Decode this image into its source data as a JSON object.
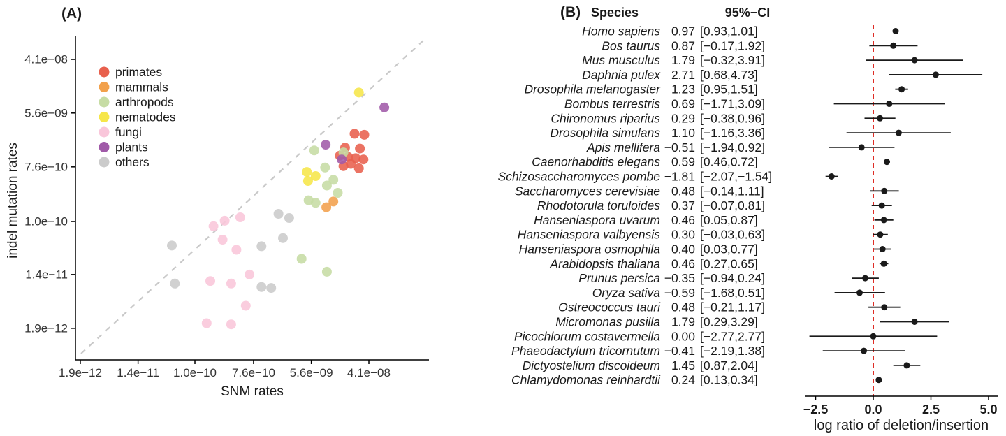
{
  "panelA": {
    "label": "(A)"
  },
  "panelB": {
    "label": "(B)"
  },
  "chart_data": [
    {
      "type": "scatter",
      "panel": "A",
      "xlabel": "SNM rates",
      "ylabel": "indel mutation rates",
      "x_scale": "log",
      "y_scale": "log",
      "identity_line": true,
      "legend_position": "top-left-inside",
      "x_ticks": [
        {
          "value": 1.9e-12,
          "label": "1.9e−12"
        },
        {
          "value": 1.4e-11,
          "label": "1.4e−11"
        },
        {
          "value": 1e-10,
          "label": "1.0e−10"
        },
        {
          "value": 7.6e-10,
          "label": "7.6e−10"
        },
        {
          "value": 5.6e-09,
          "label": "5.6e−09"
        },
        {
          "value": 4.1e-08,
          "label": "4.1e−08"
        }
      ],
      "y_ticks": [
        {
          "value": 4.1e-08,
          "label": "4.1e−08"
        },
        {
          "value": 5.6e-09,
          "label": "5.6e−09"
        },
        {
          "value": 7.6e-10,
          "label": "7.6e−10"
        },
        {
          "value": 1e-10,
          "label": "1.0e−10"
        },
        {
          "value": 1.4e-11,
          "label": "1.4e−11"
        },
        {
          "value": 1.9e-12,
          "label": "1.9e−12"
        }
      ],
      "series": [
        {
          "name": "primates",
          "color": "#E8604D",
          "points": [
            [
              2.5e-08,
              2.6e-09
            ],
            [
              3.5e-08,
              2.5e-09
            ],
            [
              1.8e-08,
              1.55e-09
            ],
            [
              3e-08,
              1.5e-09
            ],
            [
              1.5e-08,
              1.15e-09
            ],
            [
              2e-08,
              1.1e-09
            ],
            [
              2.6e-08,
              1.05e-09
            ],
            [
              3.4e-08,
              1e-09
            ],
            [
              2.2e-08,
              8.5e-10
            ],
            [
              1.7e-08,
              7.8e-10
            ],
            [
              2.9e-08,
              7.2e-10
            ]
          ]
        },
        {
          "name": "mammals",
          "color": "#F2A14C",
          "points": [
            [
              9.4e-09,
              1.7e-10
            ],
            [
              1.2e-08,
              2.1e-10
            ]
          ]
        },
        {
          "name": "arthropods",
          "color": "#C6DCA4",
          "points": [
            [
              6.2e-09,
              1.4e-09
            ],
            [
              1.7e-08,
              1.3e-09
            ],
            [
              9e-09,
              7.4e-10
            ],
            [
              1.2e-08,
              4.7e-10
            ],
            [
              9.6e-09,
              3.8e-10
            ],
            [
              1.4e-08,
              2.9e-10
            ],
            [
              5.1e-09,
              2.2e-10
            ],
            [
              6.5e-09,
              2e-10
            ],
            [
              4e-09,
              2.5e-11
            ],
            [
              9.6e-09,
              1.55e-11
            ]
          ]
        },
        {
          "name": "nematodes",
          "color": "#F6E649",
          "points": [
            [
              2.9e-08,
              1.2e-08
            ],
            [
              4.8e-09,
              6.3e-10
            ],
            [
              6.5e-09,
              5.4e-10
            ],
            [
              5e-09,
              4.5e-10
            ]
          ]
        },
        {
          "name": "fungi",
          "color": "#F9C6DA",
          "points": [
            [
              2.8e-10,
              1.03e-10
            ],
            [
              4.8e-10,
              1.17e-10
            ],
            [
              1.9e-10,
              8.4e-11
            ],
            [
              2.6e-10,
              5.1e-11
            ],
            [
              4.2e-10,
              3.5e-11
            ],
            [
              6.6e-10,
              1.4e-11
            ],
            [
              1.7e-10,
              1.1e-11
            ],
            [
              3.5e-10,
              1e-11
            ],
            [
              5.8e-10,
              4.4e-12
            ],
            [
              1.5e-10,
              2.3e-12
            ],
            [
              3.5e-10,
              2.2e-12
            ]
          ]
        },
        {
          "name": "plants",
          "color": "#A05AA8",
          "points": [
            [
              7e-08,
              6.9e-09
            ],
            [
              9.2e-09,
              1.73e-09
            ],
            [
              1.6e-08,
              1e-09
            ]
          ]
        },
        {
          "name": "others",
          "color": "#CBCBCB",
          "points": [
            [
              4.5e-11,
              4.1e-11
            ],
            [
              1.8e-09,
              1.33e-10
            ],
            [
              2.6e-09,
              1.14e-10
            ],
            [
              1e-09,
              4e-11
            ],
            [
              2.1e-09,
              5.4e-11
            ],
            [
              5e-11,
              1e-11
            ],
            [
              1e-09,
              8.8e-12
            ],
            [
              1.4e-09,
              8.5e-12
            ]
          ]
        }
      ]
    },
    {
      "type": "forest",
      "panel": "B",
      "species_header": "Species",
      "ci_header": "95%−CI",
      "xlabel": "log ratio of deletion/insertion",
      "ref_line": 0,
      "ref_line_color": "#de2d26",
      "xlim": [
        -3.0,
        5.5
      ],
      "x_ticks": [
        {
          "value": -2.5,
          "label": "−2.5"
        },
        {
          "value": 0.0,
          "label": "0.0"
        },
        {
          "value": 2.5,
          "label": "2.5"
        },
        {
          "value": 5.0,
          "label": "5.0"
        }
      ],
      "rows": [
        {
          "species": "Homo sapiens",
          "estimate": "0.97",
          "ci": "[0.93,1.01]",
          "est": 0.97,
          "lo": 0.93,
          "hi": 1.01
        },
        {
          "species": "Bos taurus",
          "estimate": "0.87",
          "ci": "[−0.17,1.92]",
          "est": 0.87,
          "lo": -0.17,
          "hi": 1.92
        },
        {
          "species": "Mus musculus",
          "estimate": "1.79",
          "ci": "[−0.32,3.91]",
          "est": 1.79,
          "lo": -0.32,
          "hi": 3.91
        },
        {
          "species": "Daphnia pulex",
          "estimate": "2.71",
          "ci": "[0.68,4.73]",
          "est": 2.71,
          "lo": 0.68,
          "hi": 4.73
        },
        {
          "species": "Drosophila melanogaster",
          "estimate": "1.23",
          "ci": "[0.95,1.51]",
          "est": 1.23,
          "lo": 0.95,
          "hi": 1.51
        },
        {
          "species": "Bombus terrestris",
          "estimate": "0.69",
          "ci": "[−1.71,3.09]",
          "est": 0.69,
          "lo": -1.71,
          "hi": 3.09
        },
        {
          "species": "Chironomus riparius",
          "estimate": "0.29",
          "ci": "[−0.38,0.96]",
          "est": 0.29,
          "lo": -0.38,
          "hi": 0.96
        },
        {
          "species": "Drosophila simulans",
          "estimate": "1.10",
          "ci": "[−1.16,3.36]",
          "est": 1.1,
          "lo": -1.16,
          "hi": 3.36
        },
        {
          "species": "Apis mellifera",
          "estimate": "−0.51",
          "ci": "[−1.94,0.92]",
          "est": -0.51,
          "lo": -1.94,
          "hi": 0.92
        },
        {
          "species": "Caenorhabditis elegans",
          "estimate": "0.59",
          "ci": "[0.46,0.72]",
          "est": 0.59,
          "lo": 0.46,
          "hi": 0.72
        },
        {
          "species": "Schizosaccharomyces pombe",
          "estimate": "−1.81",
          "ci": "[−2.07,−1.54]",
          "est": -1.81,
          "lo": -2.07,
          "hi": -1.54
        },
        {
          "species": "Saccharomyces cerevisiae",
          "estimate": "0.48",
          "ci": "[−0.14,1.11]",
          "est": 0.48,
          "lo": -0.14,
          "hi": 1.11
        },
        {
          "species": "Rhodotorula toruloides",
          "estimate": "0.37",
          "ci": "[−0.07,0.81]",
          "est": 0.37,
          "lo": -0.07,
          "hi": 0.81
        },
        {
          "species": "Hanseniaspora uvarum",
          "estimate": "0.46",
          "ci": "[0.05,0.87]",
          "est": 0.46,
          "lo": 0.05,
          "hi": 0.87
        },
        {
          "species": "Hanseniaspora valbyensis",
          "estimate": "0.30",
          "ci": "[−0.03,0.63]",
          "est": 0.3,
          "lo": -0.03,
          "hi": 0.63
        },
        {
          "species": "Hanseniaspora osmophila",
          "estimate": "0.40",
          "ci": "[0.03,0.77]",
          "est": 0.4,
          "lo": 0.03,
          "hi": 0.77
        },
        {
          "species": "Arabidopsis thaliana",
          "estimate": "0.46",
          "ci": "[0.27,0.65]",
          "est": 0.46,
          "lo": 0.27,
          "hi": 0.65
        },
        {
          "species": "Prunus persica",
          "estimate": "−0.35",
          "ci": "[−0.94,0.24]",
          "est": -0.35,
          "lo": -0.94,
          "hi": 0.24
        },
        {
          "species": "Oryza sativa",
          "estimate": "−0.59",
          "ci": "[−1.68,0.51]",
          "est": -0.59,
          "lo": -1.68,
          "hi": 0.51
        },
        {
          "species": "Ostreococcus tauri",
          "estimate": "0.48",
          "ci": "[−0.21,1.17]",
          "est": 0.48,
          "lo": -0.21,
          "hi": 1.17
        },
        {
          "species": "Micromonas pusilla",
          "estimate": "1.79",
          "ci": "[0.29,3.29]",
          "est": 1.79,
          "lo": 0.29,
          "hi": 3.29
        },
        {
          "species": "Picochlorum costavermella",
          "estimate": "0.00",
          "ci": "[−2.77,2.77]",
          "est": 0.0,
          "lo": -2.77,
          "hi": 2.77
        },
        {
          "species": "Phaeodactylum tricornutum",
          "estimate": "−0.41",
          "ci": "[−2.19,1.38]",
          "est": -0.41,
          "lo": -2.19,
          "hi": 1.38
        },
        {
          "species": "Dictyostelium discoideum",
          "estimate": "1.45",
          "ci": "[0.87,2.04]",
          "est": 1.45,
          "lo": 0.87,
          "hi": 2.04
        },
        {
          "species": "Chlamydomonas reinhardtii",
          "estimate": "0.24",
          "ci": "[0.13,0.34]",
          "est": 0.24,
          "lo": 0.13,
          "hi": 0.34
        }
      ]
    }
  ]
}
